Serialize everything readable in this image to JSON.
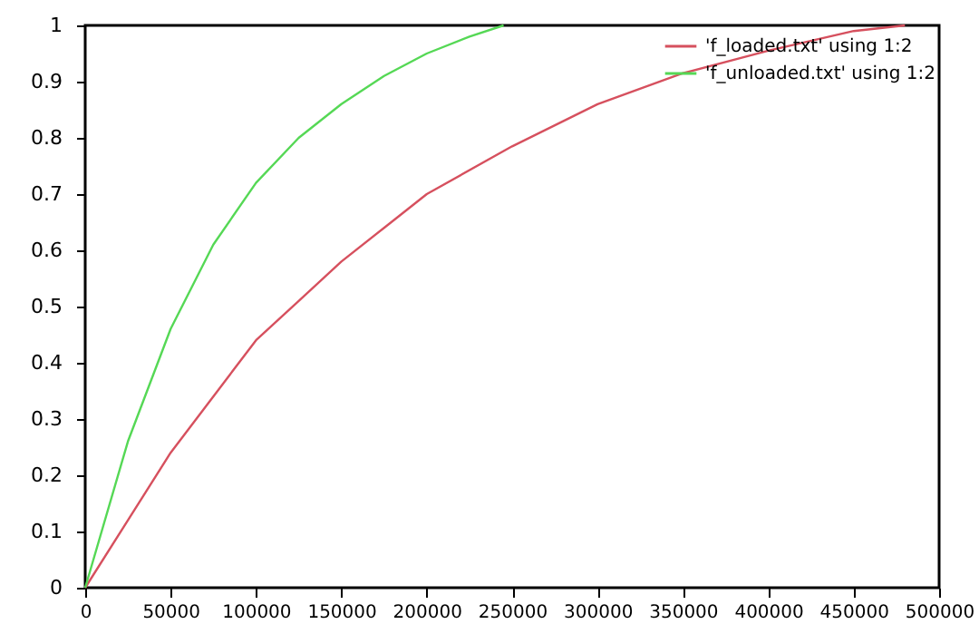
{
  "chart_data": {
    "type": "line",
    "xlim": [
      0,
      500000
    ],
    "ylim": [
      0,
      1
    ],
    "xticks": [
      0,
      50000,
      100000,
      150000,
      200000,
      250000,
      300000,
      350000,
      400000,
      450000,
      500000
    ],
    "yticks": [
      0,
      0.1,
      0.2,
      0.3,
      0.4,
      0.5,
      0.6,
      0.7,
      0.8,
      0.9,
      1
    ],
    "grid": false,
    "legend": "top right",
    "marker": "none",
    "line_style": "solid",
    "series": [
      {
        "name": "'f_loaded.txt' using 1:2",
        "color": "#d6505e",
        "x": [
          0,
          25000,
          50000,
          75000,
          100000,
          125000,
          150000,
          175000,
          200000,
          250000,
          300000,
          350000,
          400000,
          450000,
          480000
        ],
        "values": [
          0,
          0.12,
          0.24,
          0.34,
          0.44,
          0.51,
          0.58,
          0.64,
          0.7,
          0.785,
          0.86,
          0.915,
          0.955,
          0.99,
          1.0
        ]
      },
      {
        "name": "'f_unloaded.txt' using 1:2",
        "color": "#55d855",
        "x": [
          0,
          25000,
          50000,
          75000,
          100000,
          125000,
          150000,
          175000,
          200000,
          225000,
          245000
        ],
        "values": [
          0,
          0.26,
          0.46,
          0.61,
          0.72,
          0.8,
          0.86,
          0.91,
          0.95,
          0.98,
          1.0
        ]
      }
    ]
  }
}
